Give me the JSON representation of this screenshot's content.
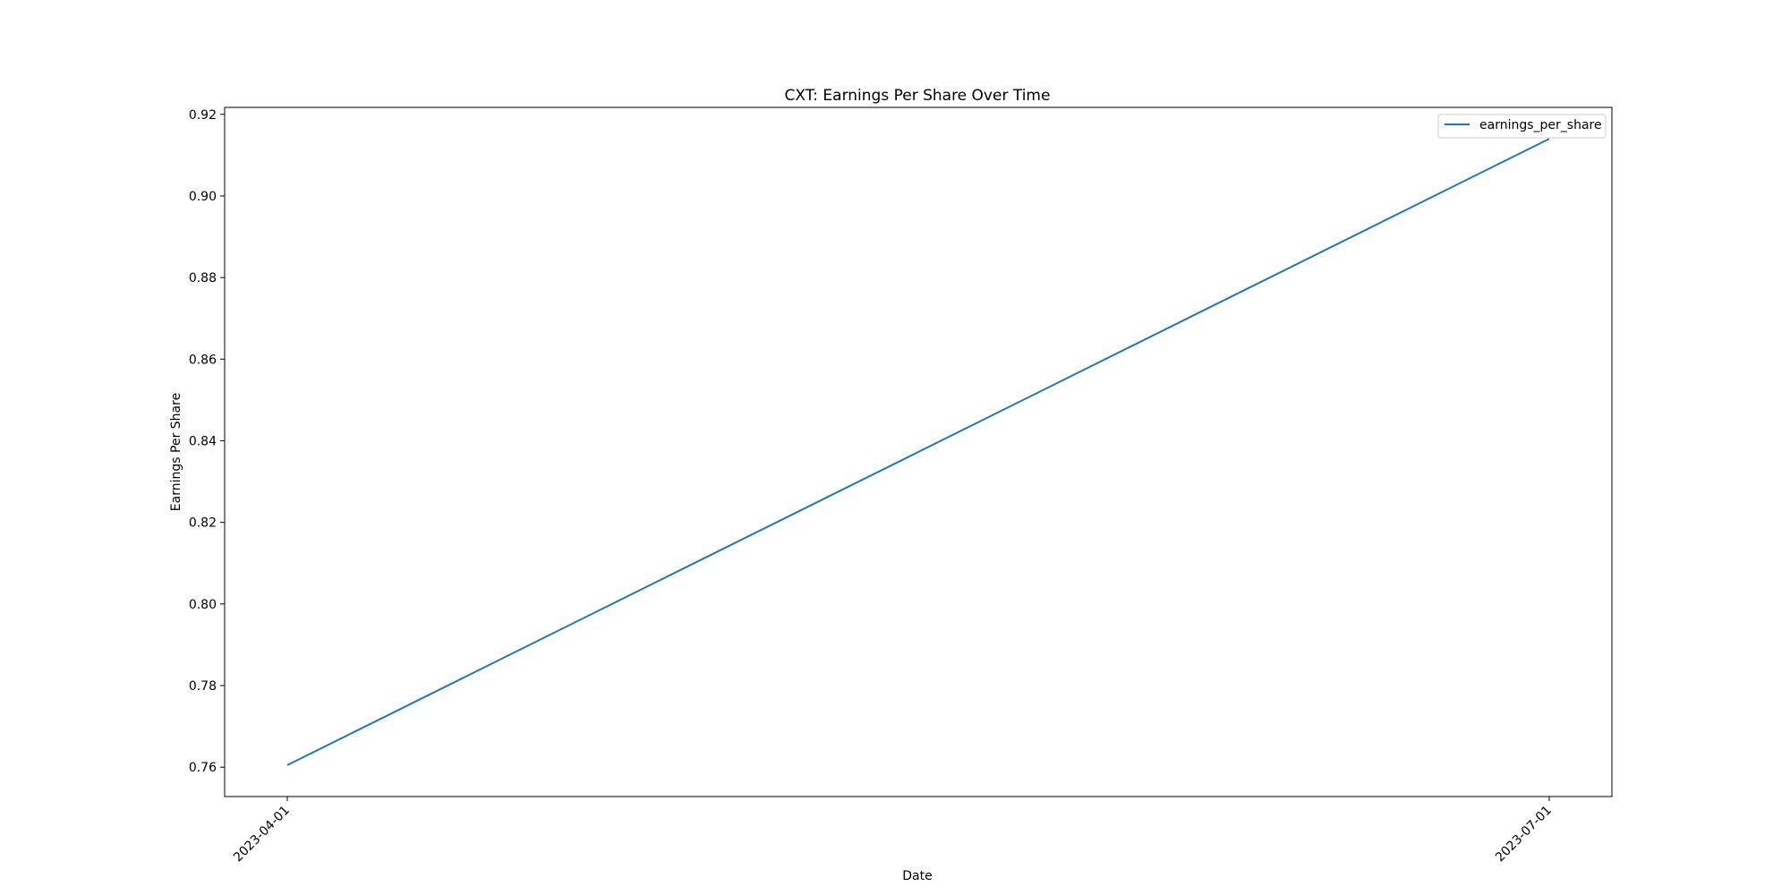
{
  "chart_data": {
    "type": "line",
    "title": "CXT: Earnings Per Share Over Time",
    "xlabel": "Date",
    "ylabel": "Earnings Per Share",
    "x": [
      "2023-04-01",
      "2023-07-01"
    ],
    "x_ticks": [
      "2023-04-01",
      "2023-07-01"
    ],
    "series": [
      {
        "name": "earnings_per_share",
        "color": "#1f77b4",
        "values": [
          0.7605,
          0.914
        ]
      }
    ],
    "y_ticks": [
      "0.76",
      "0.78",
      "0.80",
      "0.82",
      "0.84",
      "0.86",
      "0.88",
      "0.90",
      "0.92"
    ],
    "ylim": [
      0.7528,
      0.9217
    ],
    "grid": false,
    "legend_position": "upper right"
  }
}
